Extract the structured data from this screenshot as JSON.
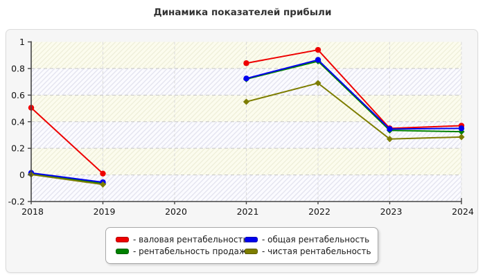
{
  "title": "Динамика показателей прибыли",
  "chart_data": {
    "type": "line",
    "x": [
      2018,
      2019,
      2020,
      2021,
      2022,
      2023,
      2024
    ],
    "x_labels": [
      "2018",
      "2019",
      "2020",
      "2021",
      "2022",
      "2023",
      "2024"
    ],
    "y_ticks": {
      "values": [
        1,
        0.8,
        0.6,
        0.4,
        0.2,
        0,
        -0.2
      ],
      "labels": [
        "1",
        "0.8",
        "0.6",
        "0.4",
        "0.2",
        "0",
        "-0.2"
      ]
    },
    "ylim": [
      -0.2,
      1.0
    ],
    "grid": "dashed",
    "plot_background": "alternating hatched bands",
    "legend_position": "bottom",
    "series": [
      {
        "id": "gross-profitability",
        "name": "валовая рентабельность",
        "color": "#ee0000",
        "marker": "circle",
        "values": [
          0.505,
          0.01,
          null,
          0.84,
          0.94,
          0.35,
          0.37
        ]
      },
      {
        "id": "sales-profitability",
        "name": "рентабельность продаж",
        "color": "#008000",
        "marker": "diamond",
        "values": [
          0.008,
          -0.065,
          null,
          0.72,
          0.855,
          0.335,
          0.325
        ]
      },
      {
        "id": "total-profitability",
        "name": "общая рентабельность",
        "color": "#0000ee",
        "marker": "circle",
        "values": [
          0.015,
          -0.055,
          null,
          0.725,
          0.865,
          0.345,
          0.35
        ]
      },
      {
        "id": "net-profitability",
        "name": "чистая рентабельность",
        "color": "#7d7d00",
        "marker": "diamond",
        "values": [
          0.003,
          -0.072,
          null,
          0.55,
          0.69,
          0.27,
          0.285
        ]
      }
    ]
  },
  "legend": {
    "items": [
      {
        "label": "- валовая рентабельность",
        "color": "#ee0000"
      },
      {
        "label": "- общая рентабельность",
        "color": "#0000ee"
      },
      {
        "label": "- рентабельность продаж",
        "color": "#008000"
      },
      {
        "label": "- чистая рентабельность",
        "color": "#7d7d00"
      }
    ]
  },
  "style": {
    "band_ivory_fill": "#fcfcee",
    "band_ivory_line": "#efefda",
    "band_blue_fill": "#fbfbff",
    "band_blue_line": "#e4e4ef",
    "axis_color": "#444444",
    "hgrid_color": "#c6c6c6",
    "vgrid_color": "#d9d9d9"
  }
}
